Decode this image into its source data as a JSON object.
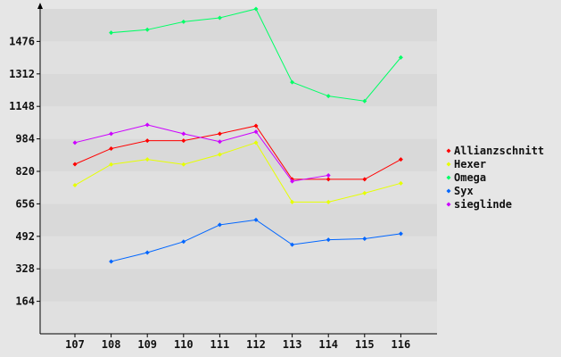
{
  "chart_data": {
    "type": "line",
    "title": "",
    "xlabel": "",
    "ylabel": "",
    "categories": [
      "107",
      "108",
      "109",
      "110",
      "111",
      "112",
      "113",
      "114",
      "115",
      "116"
    ],
    "y_ticks": [
      164,
      328,
      492,
      656,
      820,
      984,
      1148,
      1312,
      1476
    ],
    "ylim": [
      0,
      1640
    ],
    "grid": "horizontal bands",
    "legend_position": "right",
    "series": [
      {
        "name": "Allianzschnitt",
        "color": "#ff0000",
        "values": [
          856,
          935,
          975,
          975,
          1010,
          1050,
          780,
          780,
          780,
          880
        ]
      },
      {
        "name": "Hexer",
        "color": "#e6ff00",
        "values": [
          750,
          855,
          880,
          855,
          905,
          965,
          665,
          665,
          710,
          760
        ]
      },
      {
        "name": "Omega",
        "color": "#00ff66",
        "values": [
          null,
          1520,
          1535,
          1575,
          1595,
          1640,
          1270,
          1200,
          1175,
          1395
        ]
      },
      {
        "name": "Syx",
        "color": "#0066ff",
        "values": [
          null,
          365,
          410,
          465,
          550,
          575,
          450,
          475,
          480,
          505
        ]
      },
      {
        "name": "sieglinde",
        "color": "#cc00ff",
        "values": [
          965,
          1010,
          1055,
          1010,
          970,
          1020,
          770,
          800,
          null,
          null
        ]
      }
    ]
  }
}
